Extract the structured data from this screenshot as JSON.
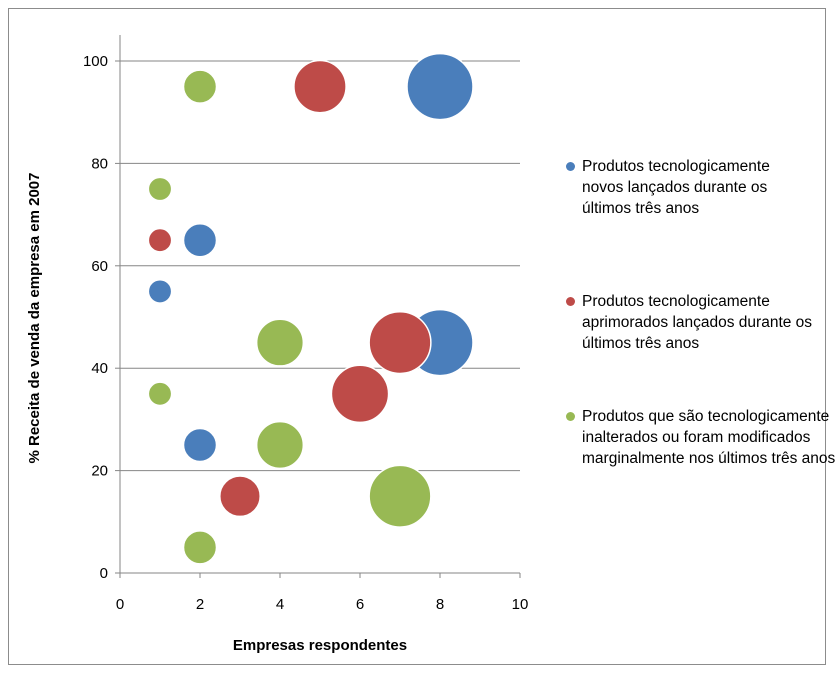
{
  "chart_data": {
    "type": "scatter",
    "xlabel": "Empresas respondentes",
    "ylabel": "% Receita de venda da empresa em 2007",
    "xlim": [
      0,
      10
    ],
    "ylim": [
      0,
      100
    ],
    "xticks": [
      0,
      2,
      4,
      6,
      8,
      10
    ],
    "yticks": [
      0,
      20,
      40,
      60,
      80,
      100
    ],
    "grid": "horizontal",
    "legend_position": "right",
    "series": [
      {
        "name": "Produtos tecnologicamente novos lançados durante os últimos três anos",
        "color": "#4a7ebb",
        "points": [
          {
            "x": 8,
            "y": 95,
            "size": 8
          },
          {
            "x": 2,
            "y": 65,
            "size": 2
          },
          {
            "x": 1,
            "y": 55,
            "size": 1
          },
          {
            "x": 8,
            "y": 45,
            "size": 8
          },
          {
            "x": 2,
            "y": 25,
            "size": 2
          }
        ]
      },
      {
        "name": "Produtos tecnologicamente aprimorados lançados durante os últimos três anos",
        "color": "#be4b48",
        "points": [
          {
            "x": 5,
            "y": 95,
            "size": 5
          },
          {
            "x": 1,
            "y": 65,
            "size": 1
          },
          {
            "x": 7,
            "y": 45,
            "size": 7
          },
          {
            "x": 6,
            "y": 35,
            "size": 6
          },
          {
            "x": 3,
            "y": 15,
            "size": 3
          }
        ]
      },
      {
        "name": "Produtos que são tecnologicamente inalterados ou foram modificados marginalmente nos últimos três anos",
        "color": "#98b954",
        "points": [
          {
            "x": 2,
            "y": 95,
            "size": 2
          },
          {
            "x": 1,
            "y": 75,
            "size": 1
          },
          {
            "x": 4,
            "y": 45,
            "size": 4
          },
          {
            "x": 1,
            "y": 35,
            "size": 1
          },
          {
            "x": 4,
            "y": 25,
            "size": 4
          },
          {
            "x": 7,
            "y": 15,
            "size": 7
          },
          {
            "x": 2,
            "y": 5,
            "size": 2
          }
        ]
      }
    ]
  }
}
